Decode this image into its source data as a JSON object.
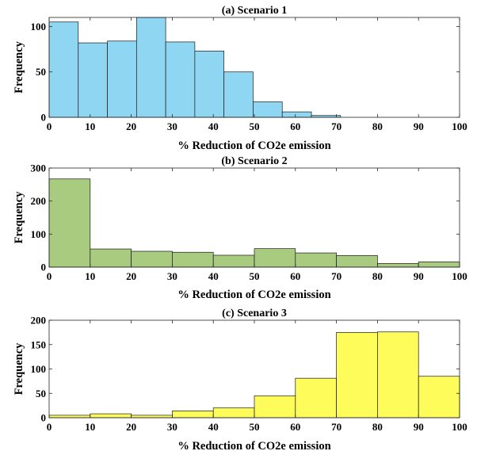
{
  "chart_data": [
    {
      "type": "bar",
      "title": "(a) Scenario 1",
      "xlabel": "% Reduction of CO2e emission",
      "ylabel": "Frequency",
      "xlim": [
        0,
        100
      ],
      "ylim": [
        0,
        110
      ],
      "xticks": [
        0,
        10,
        20,
        30,
        40,
        50,
        60,
        70,
        80,
        90,
        100
      ],
      "yticks": [
        0,
        50,
        100
      ],
      "bin_edges": [
        0,
        7.1,
        14.2,
        21.3,
        28.4,
        35.5,
        42.6,
        49.7,
        56.8,
        63.9,
        71.0
      ],
      "values": [
        105,
        82,
        84,
        110,
        83,
        73,
        50,
        17,
        6,
        2
      ],
      "color": "#8fd6f2",
      "grid": false
    },
    {
      "type": "bar",
      "title": "(b) Scenario 2",
      "xlabel": "% Reduction of CO2e emission",
      "ylabel": "Frequency",
      "xlim": [
        0,
        100
      ],
      "ylim": [
        0,
        300
      ],
      "xticks": [
        0,
        10,
        20,
        30,
        40,
        50,
        60,
        70,
        80,
        90,
        100
      ],
      "yticks": [
        0,
        100,
        200,
        300
      ],
      "bin_edges": [
        0,
        10,
        20,
        30,
        40,
        50,
        60,
        70,
        80,
        90,
        100
      ],
      "values": [
        267,
        55,
        48,
        45,
        36,
        56,
        43,
        35,
        11,
        16
      ],
      "color": "#a8cb80",
      "grid": false
    },
    {
      "type": "bar",
      "title": "(c) Scenario 3",
      "xlabel": "% Reduction of CO2e emission",
      "ylabel": "Frequency",
      "xlim": [
        0,
        100
      ],
      "ylim": [
        0,
        200
      ],
      "xticks": [
        0,
        10,
        20,
        30,
        40,
        50,
        60,
        70,
        80,
        90,
        100
      ],
      "yticks": [
        0,
        50,
        100,
        150,
        200
      ],
      "bin_edges": [
        0,
        10,
        20,
        30,
        40,
        50,
        60,
        70,
        80,
        90,
        100
      ],
      "values": [
        5,
        8,
        5,
        14,
        20,
        45,
        81,
        175,
        176,
        85
      ],
      "color": "#fefc5a",
      "grid": false
    }
  ]
}
